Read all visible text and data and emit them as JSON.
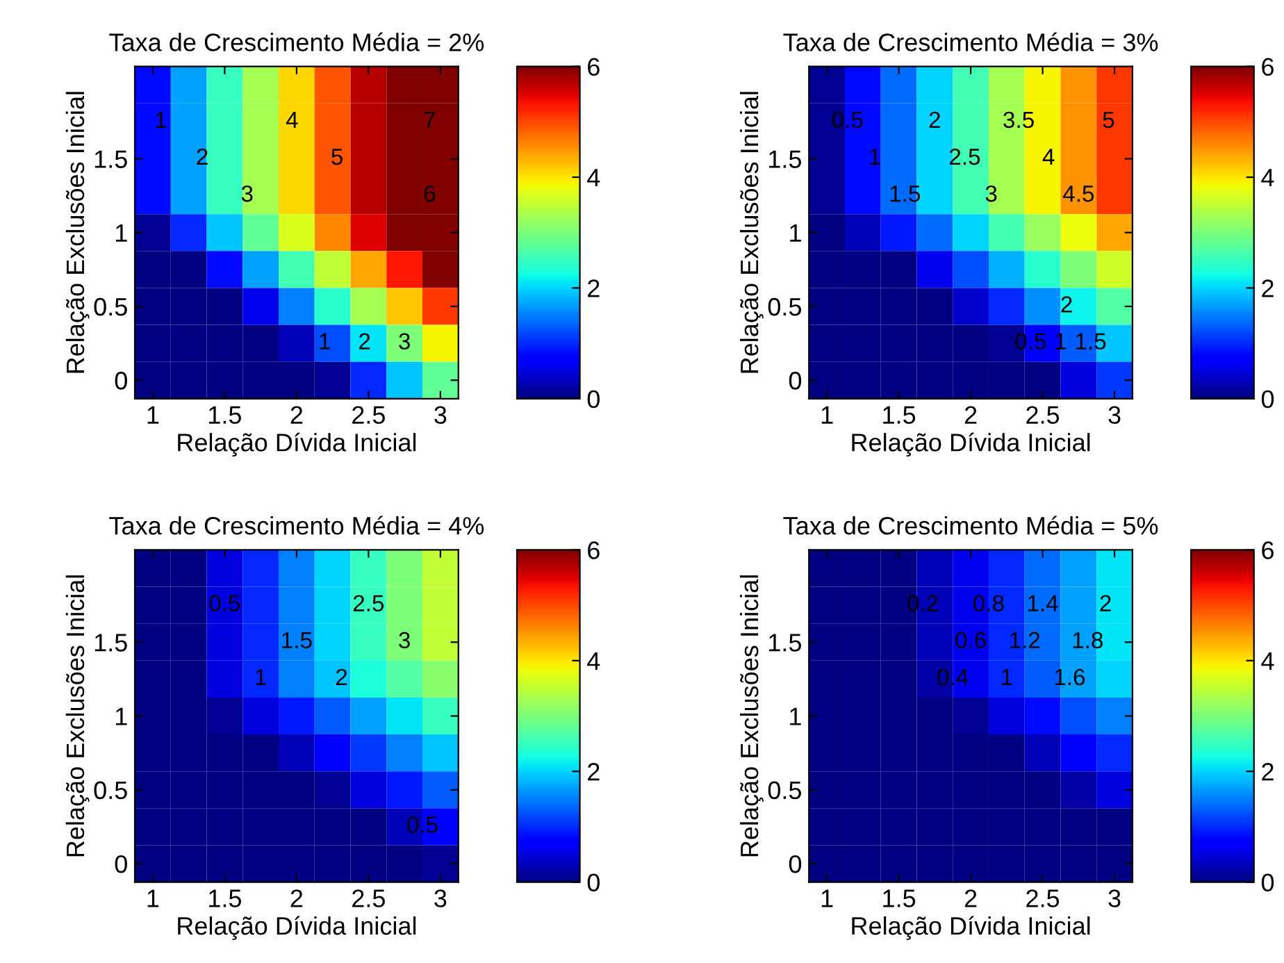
{
  "chart_data": [
    {
      "type": "heatmap",
      "title": "Taxa de Crescimento Média = 2%",
      "xlabel": "Relação Dívida Inicial",
      "ylabel": "Relação Exclusões Inicial",
      "categories": [
        "1",
        null,
        "1.5",
        null,
        "2",
        null,
        "2.5",
        null,
        "3"
      ],
      "y_categories": [
        null,
        null,
        "1.5",
        null,
        "1",
        null,
        "0.5",
        null,
        "0"
      ],
      "clim": [
        0,
        6
      ],
      "cticks": [
        0,
        2,
        4,
        6
      ],
      "cells": [
        [
          0.8,
          1.7,
          2.5,
          3.3,
          4.1,
          4.9,
          5.7,
          6,
          6
        ],
        [
          0.8,
          1.7,
          2.5,
          3.3,
          4.1,
          4.9,
          5.7,
          6,
          6
        ],
        [
          0.8,
          1.7,
          2.5,
          3.3,
          4.1,
          4.9,
          5.7,
          6,
          6
        ],
        [
          0.8,
          1.7,
          2.5,
          3.3,
          4.1,
          4.9,
          5.7,
          6,
          6
        ],
        [
          0.1,
          1.0,
          1.9,
          2.8,
          3.7,
          4.6,
          5.5,
          6,
          6
        ],
        [
          0,
          0,
          0.8,
          1.7,
          2.6,
          3.5,
          4.4,
          5.3,
          6
        ],
        [
          0,
          0,
          0,
          0.6,
          1.5,
          2.4,
          3.3,
          4.2,
          5.1
        ],
        [
          0,
          0,
          0,
          0,
          0.3,
          1.2,
          2.1,
          3.0,
          3.9
        ],
        [
          0,
          0,
          0,
          0,
          0,
          0.1,
          1.0,
          1.9,
          2.8
        ]
      ],
      "annotations": [
        "1",
        "2",
        "3",
        "4",
        "5",
        "6",
        "7",
        "1",
        "2",
        "3"
      ]
    },
    {
      "type": "heatmap",
      "title": "Taxa de Crescimento Média = 3%",
      "xlabel": "Relação Dívida Inicial",
      "ylabel": "Relação Exclusões Inicial",
      "categories": [
        "1",
        null,
        "1.5",
        null,
        "2",
        null,
        "2.5",
        null,
        "3"
      ],
      "y_categories": [
        null,
        null,
        "1.5",
        null,
        "1",
        null,
        "0.5",
        null,
        "0"
      ],
      "clim": [
        0,
        6
      ],
      "cticks": [
        0,
        2,
        4,
        6
      ],
      "cells": [
        [
          0.1,
          0.8,
          1.4,
          2.0,
          2.6,
          3.3,
          3.9,
          4.5,
          5.1
        ],
        [
          0.1,
          0.8,
          1.4,
          2.0,
          2.6,
          3.3,
          3.9,
          4.5,
          5.1
        ],
        [
          0.1,
          0.8,
          1.4,
          2.0,
          2.6,
          3.3,
          3.9,
          4.5,
          5.1
        ],
        [
          0.1,
          0.8,
          1.4,
          2.0,
          2.6,
          3.3,
          3.9,
          4.5,
          5.1
        ],
        [
          0,
          0.3,
          0.9,
          1.4,
          2.0,
          2.6,
          3.2,
          3.8,
          4.4
        ],
        [
          0,
          0,
          0,
          0.6,
          1.2,
          1.8,
          2.4,
          3.0,
          3.6
        ],
        [
          0,
          0,
          0,
          0,
          0.4,
          1.0,
          1.6,
          2.2,
          2.7
        ],
        [
          0,
          0,
          0,
          0,
          0,
          0.1,
          0.7,
          1.3,
          1.9
        ],
        [
          0,
          0,
          0,
          0,
          0,
          0,
          0,
          0.5,
          1.1
        ]
      ],
      "annotations": [
        "0.5",
        "1",
        "1.5",
        "2",
        "2.5",
        "3",
        "3.5",
        "4",
        "4.5",
        "5",
        "0.5",
        "1",
        "1.5",
        "2"
      ]
    },
    {
      "type": "heatmap",
      "title": "Taxa de Crescimento Média = 4%",
      "xlabel": "Relação Dívida Inicial",
      "ylabel": "Relação Exclusões Inicial",
      "categories": [
        "1",
        null,
        "1.5",
        null,
        "2",
        null,
        "2.5",
        null,
        "3"
      ],
      "y_categories": [
        null,
        null,
        "1.5",
        null,
        "1",
        null,
        "0.5",
        null,
        "0"
      ],
      "clim": [
        0,
        6
      ],
      "cticks": [
        0,
        2,
        4,
        6
      ],
      "cells": [
        [
          0,
          0,
          0.5,
          1.0,
          1.5,
          2.0,
          2.5,
          3.0,
          3.5
        ],
        [
          0,
          0,
          0.5,
          1.0,
          1.5,
          2.0,
          2.5,
          3.0,
          3.5
        ],
        [
          0,
          0,
          0.5,
          1.0,
          1.5,
          2.0,
          2.5,
          3.0,
          3.5
        ],
        [
          0,
          0,
          0.5,
          1.0,
          1.5,
          1.9,
          2.3,
          2.7,
          3.1
        ],
        [
          0,
          0,
          0.1,
          0.5,
          0.9,
          1.3,
          1.7,
          2.1,
          2.5
        ],
        [
          0,
          0,
          0,
          0,
          0.3,
          0.7,
          1.1,
          1.5,
          1.9
        ],
        [
          0,
          0,
          0,
          0,
          0,
          0.1,
          0.5,
          0.9,
          1.3
        ],
        [
          0,
          0,
          0,
          0,
          0,
          0,
          0,
          0.3,
          0.7
        ],
        [
          0,
          0,
          0,
          0,
          0,
          0,
          0,
          0,
          0.1
        ]
      ],
      "annotations": [
        "0.5",
        "1.5",
        "2",
        "2.5",
        "3",
        "0.5",
        "1"
      ]
    },
    {
      "type": "heatmap",
      "title": "Taxa de Crescimento Média = 5%",
      "xlabel": "Relação Dívida Inicial",
      "ylabel": "Relação Exclusões Inicial",
      "categories": [
        "1",
        null,
        "1.5",
        null,
        "2",
        null,
        "2.5",
        null,
        "3"
      ],
      "y_categories": [
        null,
        null,
        "1.5",
        null,
        "1",
        null,
        "0.5",
        null,
        "0"
      ],
      "clim": [
        0,
        6
      ],
      "cticks": [
        0,
        2,
        4,
        6
      ],
      "cells": [
        [
          0,
          0,
          0,
          0.3,
          0.6,
          1.0,
          1.4,
          1.7,
          2.1
        ],
        [
          0,
          0,
          0,
          0.3,
          0.6,
          1.0,
          1.4,
          1.7,
          2.1
        ],
        [
          0,
          0,
          0,
          0.3,
          0.6,
          1.0,
          1.4,
          1.7,
          2.1
        ],
        [
          0,
          0,
          0,
          0.2,
          0.6,
          1.0,
          1.3,
          1.7,
          2.0
        ],
        [
          0,
          0,
          0,
          0,
          0.1,
          0.5,
          0.8,
          1.2,
          1.5
        ],
        [
          0,
          0,
          0,
          0,
          0,
          0,
          0.3,
          0.7,
          1.0
        ],
        [
          0,
          0,
          0,
          0,
          0,
          0,
          0,
          0.2,
          0.5
        ],
        [
          0,
          0,
          0,
          0,
          0,
          0,
          0,
          0,
          0
        ],
        [
          0,
          0,
          0,
          0,
          0,
          0,
          0,
          0,
          0
        ]
      ],
      "annotations": [
        "2",
        "1.8",
        "1.6",
        "1.4",
        "1.2",
        "1",
        "0.8",
        "0.6",
        "0.4",
        "0.2"
      ]
    }
  ]
}
